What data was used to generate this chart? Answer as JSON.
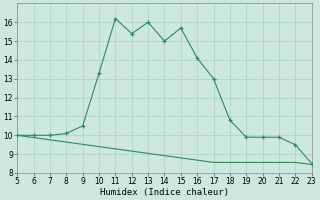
{
  "x_humidex": [
    5,
    6,
    7,
    8,
    9,
    10,
    11,
    12,
    13,
    14,
    15,
    16,
    17,
    18,
    19,
    20,
    21,
    22,
    23
  ],
  "y_humidex": [
    10.0,
    10.0,
    10.0,
    10.1,
    10.5,
    13.3,
    16.2,
    15.4,
    16.0,
    15.0,
    15.7,
    14.1,
    13.0,
    10.8,
    9.9,
    9.9,
    9.9,
    9.5,
    8.5
  ],
  "x_trend": [
    5,
    6,
    7,
    8,
    9,
    10,
    11,
    12,
    13,
    14,
    15,
    16,
    17,
    18,
    19,
    20,
    21,
    22,
    23
  ],
  "y_trend": [
    10.0,
    9.88,
    9.76,
    9.64,
    9.52,
    9.4,
    9.28,
    9.16,
    9.04,
    8.92,
    8.8,
    8.68,
    8.56,
    8.56,
    8.56,
    8.56,
    8.56,
    8.56,
    8.45
  ],
  "line_color": "#2e8b57",
  "bg_color": "#cde8e0",
  "grid_color": "#b0cfc5",
  "xlabel": "Humidex (Indice chaleur)",
  "ylim": [
    8,
    17
  ],
  "xlim": [
    5,
    23
  ],
  "yticks": [
    8,
    9,
    10,
    11,
    12,
    13,
    14,
    15,
    16
  ],
  "xticks": [
    5,
    6,
    7,
    8,
    9,
    10,
    11,
    12,
    13,
    14,
    15,
    16,
    17,
    18,
    19,
    20,
    21,
    22,
    23
  ]
}
